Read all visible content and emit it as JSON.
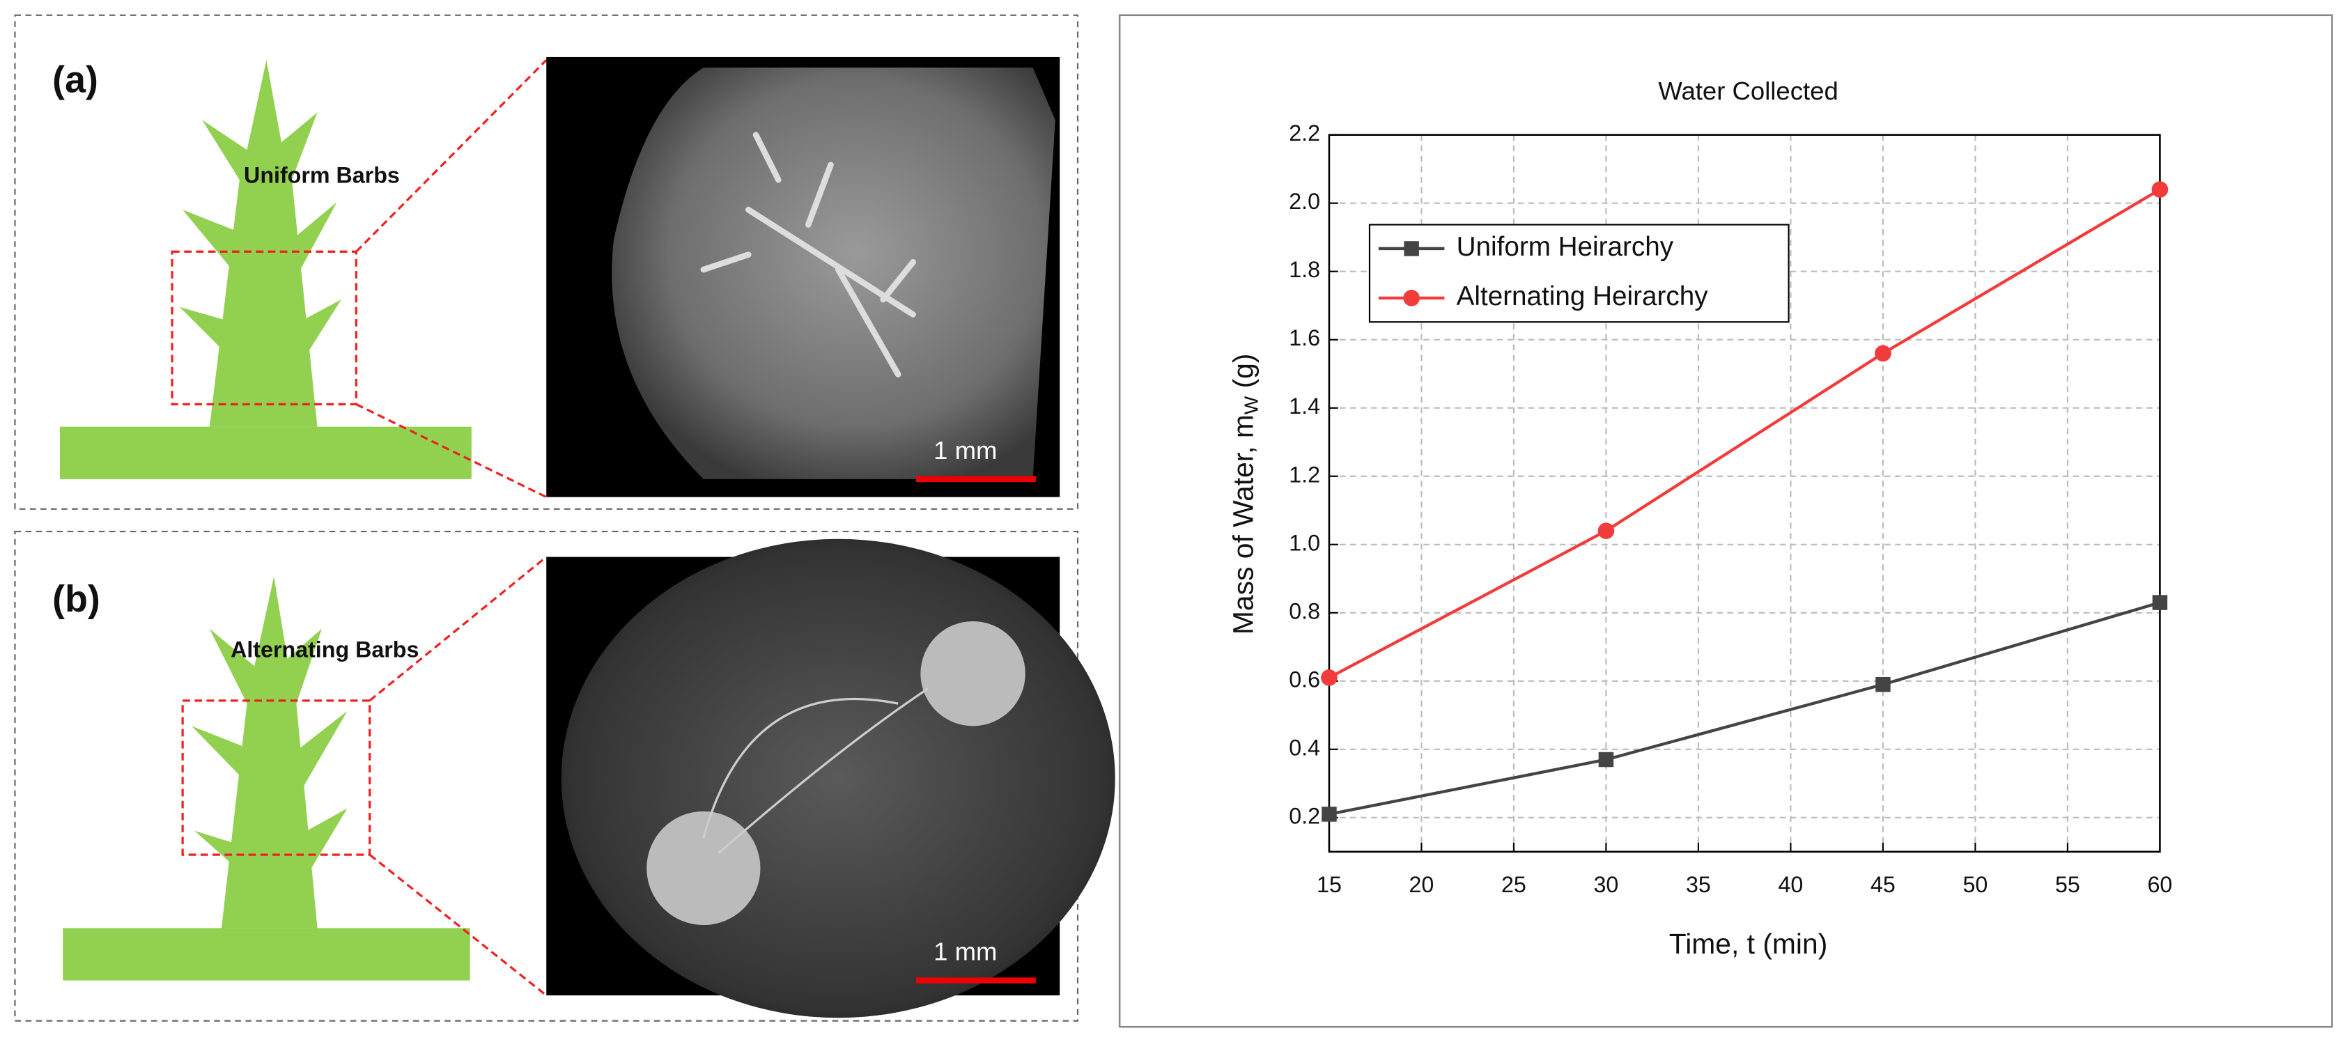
{
  "panels": [
    {
      "label": "(a)",
      "caption": "Uniform Barbs",
      "scale_bar": "1 mm"
    },
    {
      "label": "(b)",
      "caption": "Alternating Barbs",
      "scale_bar": "1 mm"
    }
  ],
  "chart_data": {
    "type": "line",
    "title": "Water Collected",
    "xlabel": "Time, t (min)",
    "ylabel": [
      "Mass of Water, m",
      "W",
      " (g)"
    ],
    "x": [
      15,
      30,
      45,
      60
    ],
    "series": [
      {
        "name": "Uniform Heirarchy",
        "color": "#444444",
        "marker": "square",
        "values": [
          0.21,
          0.37,
          0.59,
          0.83
        ]
      },
      {
        "name": "Alternating Heirarchy",
        "color": "#f23c3c",
        "marker": "circle",
        "values": [
          0.61,
          1.04,
          1.56,
          2.04
        ]
      }
    ],
    "xlim": [
      15,
      60
    ],
    "xticks": [
      15,
      20,
      25,
      30,
      35,
      40,
      45,
      50,
      55,
      60
    ],
    "ylim": [
      0.1,
      2.2
    ],
    "yticks": [
      0.2,
      0.4,
      0.6,
      0.8,
      {
        "value": 1,
        "label": "1.0"
      },
      1.2,
      1.4,
      1.6,
      1.8,
      {
        "value": 2,
        "label": "2.0"
      },
      2.2
    ],
    "grid": true,
    "legend": "upper left"
  }
}
